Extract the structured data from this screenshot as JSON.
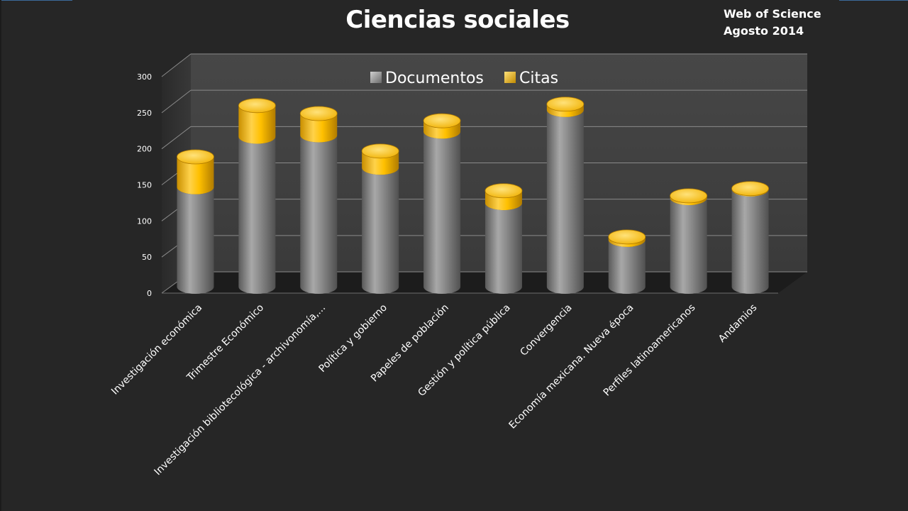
{
  "header": {
    "title": "Ciencias sociales",
    "source_line1": "Web of Science",
    "source_line2": "Agosto  2014"
  },
  "chart_data": {
    "type": "bar",
    "stacked": true,
    "style": "3d-cylinder",
    "title": "Ciencias sociales",
    "categories": [
      "Investigación económica",
      "Trimestre Económico",
      "Investigación bibliotecológica - archivonomía,...",
      "Política y gobierno",
      "Papeles de población",
      "Gestión y política pública",
      "Convergencia",
      "Economía mexicana. Nueva época",
      "Perfiles latinoamericanos",
      "Andamios"
    ],
    "series": [
      {
        "name": "Documentos",
        "color": "#8c8c8c",
        "values": [
          138,
          208,
          210,
          165,
          215,
          116,
          245,
          65,
          123,
          135
        ]
      },
      {
        "name": "Citas",
        "color": "#ffc000",
        "values": [
          42,
          43,
          30,
          23,
          15,
          17,
          8,
          4,
          3,
          1
        ]
      }
    ],
    "ylim": [
      0,
      300
    ],
    "yticks": [
      "0",
      "50",
      "100",
      "150",
      "200",
      "250",
      "300"
    ],
    "grid": true,
    "legend_position": "top",
    "colors": {
      "background": "#262626",
      "wall": "#3f3f3f",
      "floor": "#1e1e1e",
      "gridline": "#8a8a8a"
    }
  }
}
